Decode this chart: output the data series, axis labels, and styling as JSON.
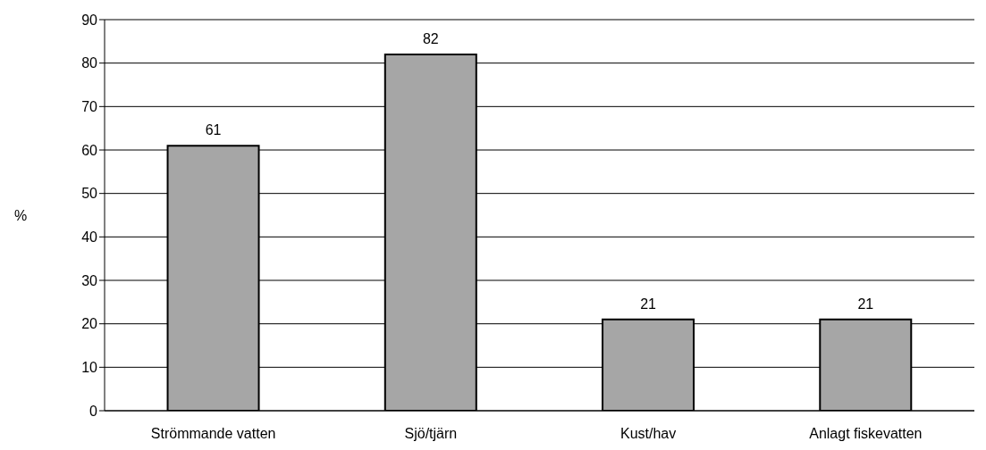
{
  "chart_data": {
    "type": "bar",
    "ylabel": "%",
    "categories": [
      "Strömmande vatten",
      "Sjö/tjärn",
      "Kust/hav",
      "Anlagt fiskevatten"
    ],
    "values": [
      61,
      82,
      21,
      21
    ],
    "color": "#a6a6a6",
    "ylim": [
      0,
      90
    ],
    "yticks": [
      0,
      10,
      20,
      30,
      40,
      50,
      60,
      70,
      80,
      90
    ],
    "grid": "y",
    "data_labels": true
  }
}
